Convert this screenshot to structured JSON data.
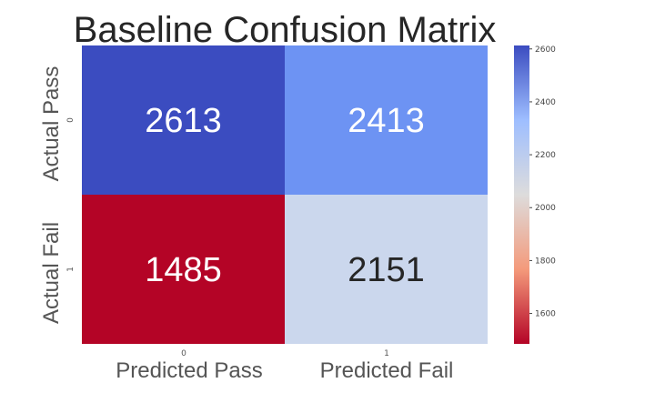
{
  "chart_data": {
    "type": "heatmap",
    "title": "Baseline Confusion Matrix",
    "rows": [
      "Actual Pass",
      "Actual Fail"
    ],
    "row_ticks": [
      "0",
      "1"
    ],
    "columns": [
      "Predicted Pass",
      "Predicted Fail"
    ],
    "column_ticks": [
      "0",
      "1"
    ],
    "values": [
      [
        2613,
        2413
      ],
      [
        1485,
        2151
      ]
    ],
    "cell_text_colors": [
      [
        "#ffffff",
        "#ffffff"
      ],
      [
        "#ffffff",
        "#262626"
      ]
    ],
    "colormap": "coolwarm_r",
    "colorbar": {
      "range": [
        1485,
        2613
      ],
      "ticks": [
        1600,
        1800,
        2000,
        2200,
        2400,
        2600
      ]
    },
    "grid": false
  }
}
